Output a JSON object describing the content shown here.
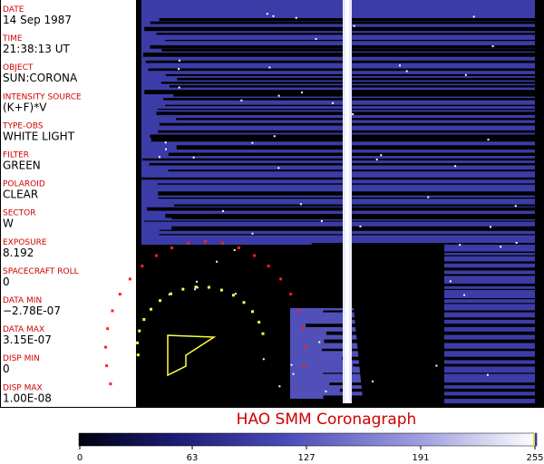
{
  "fields": [
    {
      "label": "DATE",
      "value": "14 Sep 1987"
    },
    {
      "label": "TIME",
      "value": "21:38:13 UT"
    },
    {
      "label": "OBJECT",
      "value": "SUN:CORONA"
    },
    {
      "label": "INTENSITY SOURCE",
      "value": "(K+F)*V"
    },
    {
      "label": "TYPE-OBS",
      "value": "WHITE LIGHT"
    },
    {
      "label": "FILTER",
      "value": "GREEN"
    },
    {
      "label": "POLAROID",
      "value": "CLEAR"
    },
    {
      "label": "SECTOR",
      "value": "W"
    },
    {
      "label": "EXPOSURE",
      "value": "8.192"
    },
    {
      "label": "SPACECRAFT ROLL",
      "value": "0"
    },
    {
      "label": "DATA MIN",
      "value": "−2.78E-07"
    },
    {
      "label": "DATA MAX",
      "value": "3.15E-07"
    },
    {
      "label": "DISP MIN",
      "value": "0"
    },
    {
      "label": "DISP MAX",
      "value": "1.00E-08"
    }
  ],
  "title": "HAO SMM Coronagraph",
  "colorbar": {
    "range": [
      0,
      255
    ],
    "ticks": [
      0,
      63,
      127,
      191,
      255
    ]
  }
}
